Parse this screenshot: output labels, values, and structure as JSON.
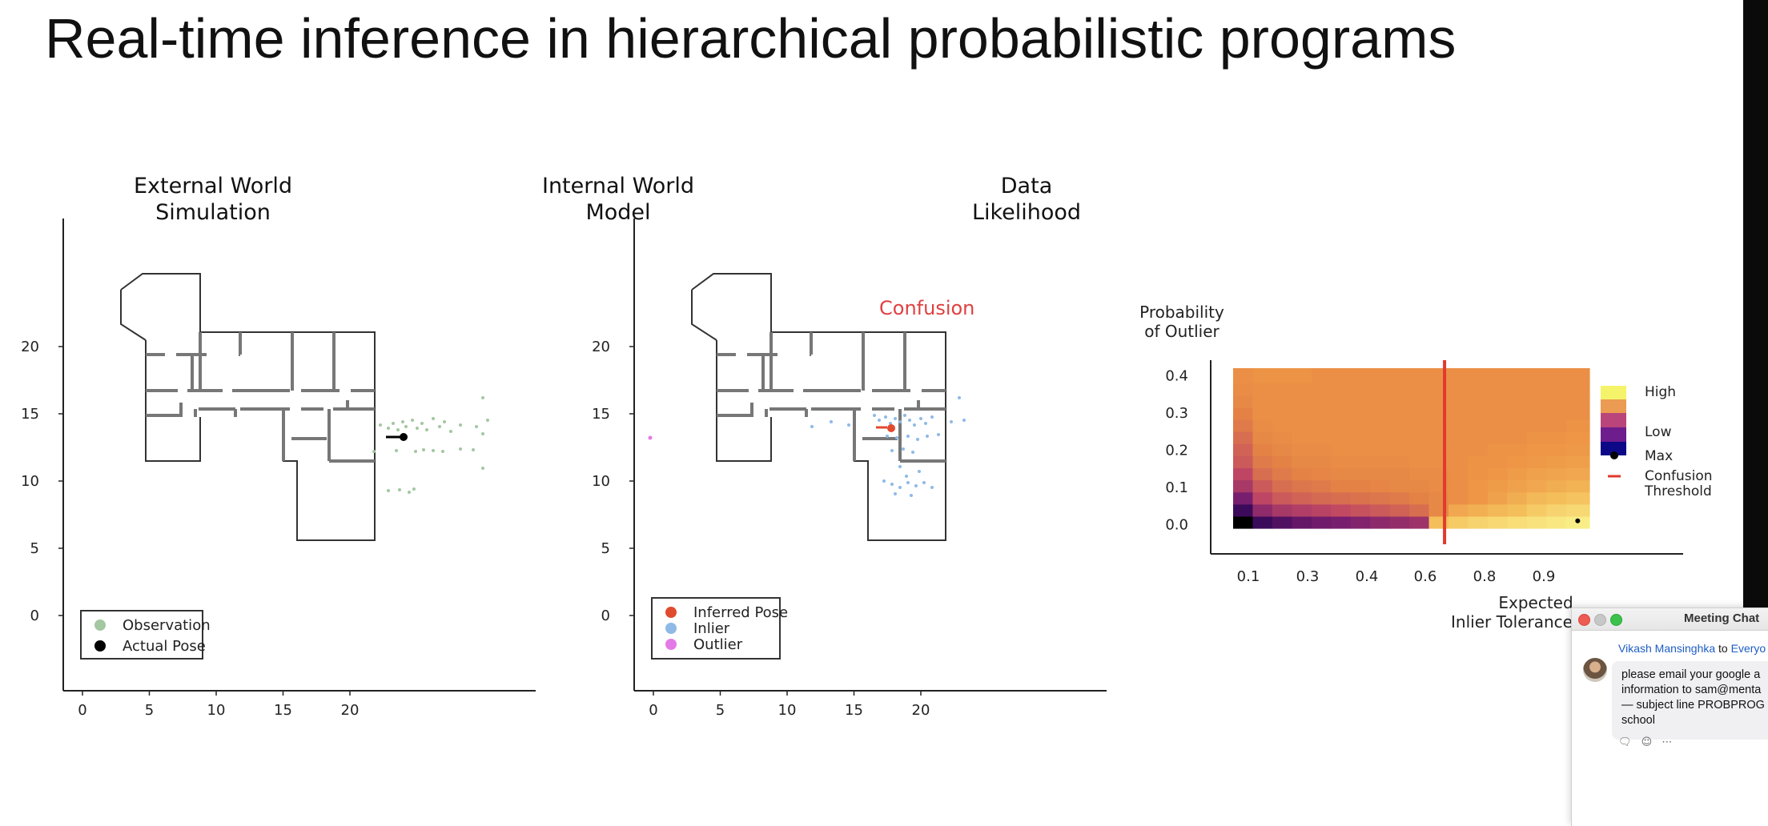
{
  "slide": {
    "title": "Real-time inference in hierarchical probabilistic programs"
  },
  "panels": {
    "external": {
      "title_line1": "External World",
      "title_line2": "Simulation",
      "x_ticks": [
        "0",
        "5",
        "10",
        "15",
        "20"
      ],
      "y_ticks": [
        "0",
        "5",
        "10",
        "15",
        "20"
      ],
      "legend": [
        {
          "label": "Observation",
          "color": "#a3c7a0"
        },
        {
          "label": "Actual Pose",
          "color": "#000000"
        }
      ]
    },
    "internal": {
      "title_line1": "Internal World",
      "title_line2": "Model",
      "annotation": "Confusion",
      "annotation_color": "#e04040",
      "x_ticks": [
        "0",
        "5",
        "10",
        "15",
        "20"
      ],
      "y_ticks": [
        "0",
        "5",
        "10",
        "15",
        "20"
      ],
      "legend": [
        {
          "label": "Inferred Pose",
          "color": "#e04a2f"
        },
        {
          "label": "Inlier",
          "color": "#8fb9e6"
        },
        {
          "label": "Outlier",
          "color": "#e47ae6"
        }
      ]
    },
    "likelihood": {
      "title_line1": "Data",
      "title_line2": "Likelihood",
      "ylabel_line1": "Probability",
      "ylabel_line2": "of Outlier",
      "xlabel_line1": "Expected",
      "xlabel_line2": "Inlier Tolerance",
      "x_ticks": [
        "0.1",
        "0.3",
        "0.4",
        "0.6",
        "0.8",
        "0.9"
      ],
      "y_ticks": [
        "0.0",
        "0.1",
        "0.2",
        "0.3",
        "0.4"
      ],
      "legend": {
        "high": "High",
        "low": "Low",
        "max": "Max",
        "threshold_line1": "Confusion",
        "threshold_line2": "Threshold"
      },
      "colors": {
        "high": "#f5f36a",
        "mid_high": "#eb9b52",
        "mid": "#b9457a",
        "mid_low": "#6d1d8c",
        "low": "#0d0887",
        "threshold": "#e03a2e"
      }
    }
  },
  "chat": {
    "window_title": "Meeting Chat",
    "sender": "Vikash Mansinghka",
    "to_word": "to",
    "recipient": "Everyo",
    "message_lines": [
      "please email your google a",
      "information to sam@menta",
      "— subject line PROBPROG",
      "school"
    ],
    "action_icons": [
      "reply-icon",
      "emoji-icon",
      "more-icon"
    ]
  },
  "chart_data": [
    {
      "type": "heatmap",
      "title": "Data Likelihood",
      "xlabel": "Expected Inlier Tolerance",
      "ylabel": "Probability of Outlier",
      "x_ticks": [
        0.1,
        0.3,
        0.4,
        0.6,
        0.8,
        0.9
      ],
      "y_ticks": [
        0.0,
        0.1,
        0.2,
        0.3,
        0.4
      ],
      "xlim": [
        0.07,
        0.98
      ],
      "ylim": [
        -0.01,
        0.42
      ],
      "x_edges": [
        0.07,
        0.12,
        0.17,
        0.22,
        0.27,
        0.32,
        0.37,
        0.42,
        0.47,
        0.52,
        0.57,
        0.62,
        0.67,
        0.72,
        0.77,
        0.82,
        0.87,
        0.92,
        0.98
      ],
      "y_edges": [
        -0.01,
        0.0225,
        0.055,
        0.0875,
        0.12,
        0.1525,
        0.185,
        0.2175,
        0.25,
        0.2825,
        0.315,
        0.3475,
        0.38,
        0.42
      ],
      "values": [
        [
          0.0,
          0.15,
          0.2,
          0.25,
          0.28,
          0.3,
          0.32,
          0.34,
          0.36,
          0.38,
          0.8,
          0.85,
          0.88,
          0.9,
          0.92,
          0.94,
          0.96,
          0.98
        ],
        [
          0.15,
          0.35,
          0.4,
          0.42,
          0.44,
          0.46,
          0.48,
          0.5,
          0.52,
          0.55,
          0.62,
          0.72,
          0.75,
          0.78,
          0.8,
          0.85,
          0.88,
          0.9
        ],
        [
          0.3,
          0.45,
          0.5,
          0.52,
          0.54,
          0.55,
          0.56,
          0.57,
          0.58,
          0.6,
          0.62,
          0.64,
          0.66,
          0.7,
          0.74,
          0.78,
          0.8,
          0.82
        ],
        [
          0.4,
          0.5,
          0.55,
          0.57,
          0.58,
          0.6,
          0.6,
          0.61,
          0.62,
          0.62,
          0.63,
          0.64,
          0.66,
          0.68,
          0.7,
          0.72,
          0.74,
          0.76
        ],
        [
          0.45,
          0.55,
          0.58,
          0.6,
          0.61,
          0.62,
          0.62,
          0.62,
          0.62,
          0.63,
          0.63,
          0.64,
          0.65,
          0.66,
          0.68,
          0.7,
          0.71,
          0.72
        ],
        [
          0.5,
          0.58,
          0.6,
          0.62,
          0.62,
          0.63,
          0.63,
          0.63,
          0.63,
          0.64,
          0.64,
          0.64,
          0.65,
          0.65,
          0.66,
          0.67,
          0.68,
          0.69
        ],
        [
          0.52,
          0.6,
          0.62,
          0.63,
          0.63,
          0.64,
          0.64,
          0.64,
          0.64,
          0.64,
          0.64,
          0.64,
          0.64,
          0.65,
          0.65,
          0.66,
          0.66,
          0.67
        ],
        [
          0.55,
          0.62,
          0.63,
          0.64,
          0.64,
          0.64,
          0.64,
          0.64,
          0.64,
          0.64,
          0.64,
          0.64,
          0.64,
          0.64,
          0.64,
          0.65,
          0.65,
          0.66
        ],
        [
          0.58,
          0.63,
          0.64,
          0.64,
          0.64,
          0.64,
          0.64,
          0.64,
          0.64,
          0.64,
          0.64,
          0.64,
          0.64,
          0.64,
          0.64,
          0.64,
          0.64,
          0.65
        ],
        [
          0.6,
          0.64,
          0.64,
          0.64,
          0.64,
          0.64,
          0.64,
          0.64,
          0.64,
          0.64,
          0.64,
          0.64,
          0.64,
          0.64,
          0.64,
          0.64,
          0.64,
          0.64
        ],
        [
          0.62,
          0.64,
          0.64,
          0.64,
          0.64,
          0.64,
          0.64,
          0.64,
          0.64,
          0.64,
          0.64,
          0.64,
          0.64,
          0.64,
          0.64,
          0.64,
          0.64,
          0.64
        ],
        [
          0.63,
          0.64,
          0.64,
          0.64,
          0.64,
          0.64,
          0.64,
          0.64,
          0.64,
          0.64,
          0.64,
          0.64,
          0.64,
          0.64,
          0.64,
          0.64,
          0.64,
          0.64
        ],
        [
          0.64,
          0.65,
          0.65,
          0.65,
          0.64,
          0.64,
          0.64,
          0.64,
          0.64,
          0.64,
          0.64,
          0.64,
          0.64,
          0.64,
          0.64,
          0.64,
          0.64,
          0.64
        ]
      ],
      "threshold_x": 0.61,
      "max_point": {
        "x": 0.95,
        "y": 0.01
      },
      "legend_placement": "right",
      "grid": false
    }
  ]
}
